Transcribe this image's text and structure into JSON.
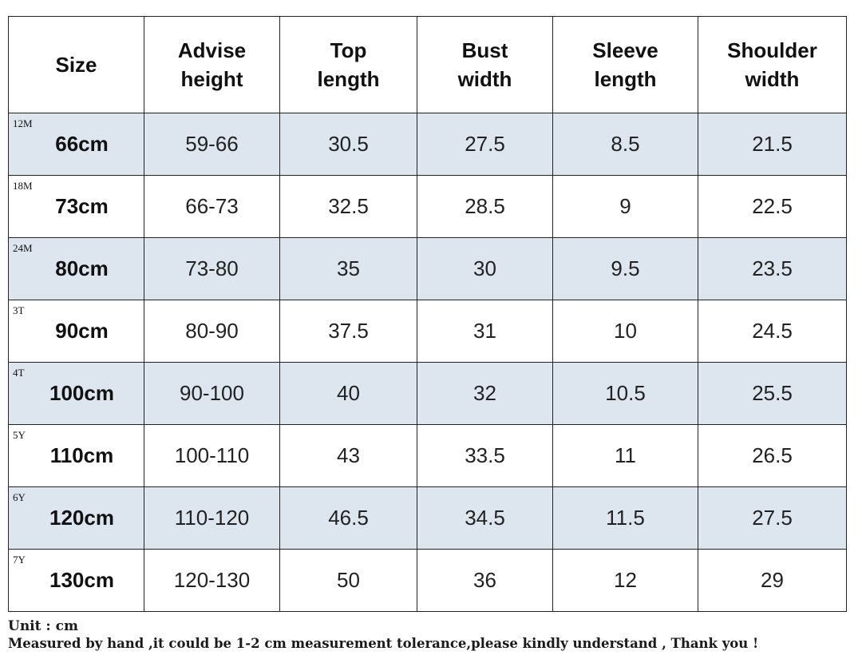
{
  "table": {
    "headers": [
      "Size",
      "Advise\nheight",
      "Top\nlength",
      "Bust\nwidth",
      "Sleeve\nlength",
      "Shoulder\nwidth"
    ],
    "rows": [
      {
        "code": "12M",
        "size": "66cm",
        "height": "59-66",
        "top_length": "30.5",
        "bust_width": "27.5",
        "sleeve_length": "8.5",
        "shoulder_width": "21.5"
      },
      {
        "code": "18M",
        "size": "73cm",
        "height": "66-73",
        "top_length": "32.5",
        "bust_width": "28.5",
        "sleeve_length": "9",
        "shoulder_width": "22.5"
      },
      {
        "code": "24M",
        "size": "80cm",
        "height": "73-80",
        "top_length": "35",
        "bust_width": "30",
        "sleeve_length": "9.5",
        "shoulder_width": "23.5"
      },
      {
        "code": "3T",
        "size": "90cm",
        "height": "80-90",
        "top_length": "37.5",
        "bust_width": "31",
        "sleeve_length": "10",
        "shoulder_width": "24.5"
      },
      {
        "code": "4T",
        "size": "100cm",
        "height": "90-100",
        "top_length": "40",
        "bust_width": "32",
        "sleeve_length": "10.5",
        "shoulder_width": "25.5"
      },
      {
        "code": "5Y",
        "size": "110cm",
        "height": "100-110",
        "top_length": "43",
        "bust_width": "33.5",
        "sleeve_length": "11",
        "shoulder_width": "26.5"
      },
      {
        "code": "6Y",
        "size": "120cm",
        "height": "110-120",
        "top_length": "46.5",
        "bust_width": "34.5",
        "sleeve_length": "11.5",
        "shoulder_width": "27.5"
      },
      {
        "code": "7Y",
        "size": "130cm",
        "height": "120-130",
        "top_length": "50",
        "bust_width": "36",
        "sleeve_length": "12",
        "shoulder_width": "29"
      }
    ]
  },
  "footer": {
    "unit": "Unit : cm",
    "note": "Measured by hand ,it could be 1-2 cm measurement tolerance,please kindly understand , Thank you !"
  },
  "colors": {
    "shaded_row": "#dde5ef",
    "border": "#222222"
  }
}
